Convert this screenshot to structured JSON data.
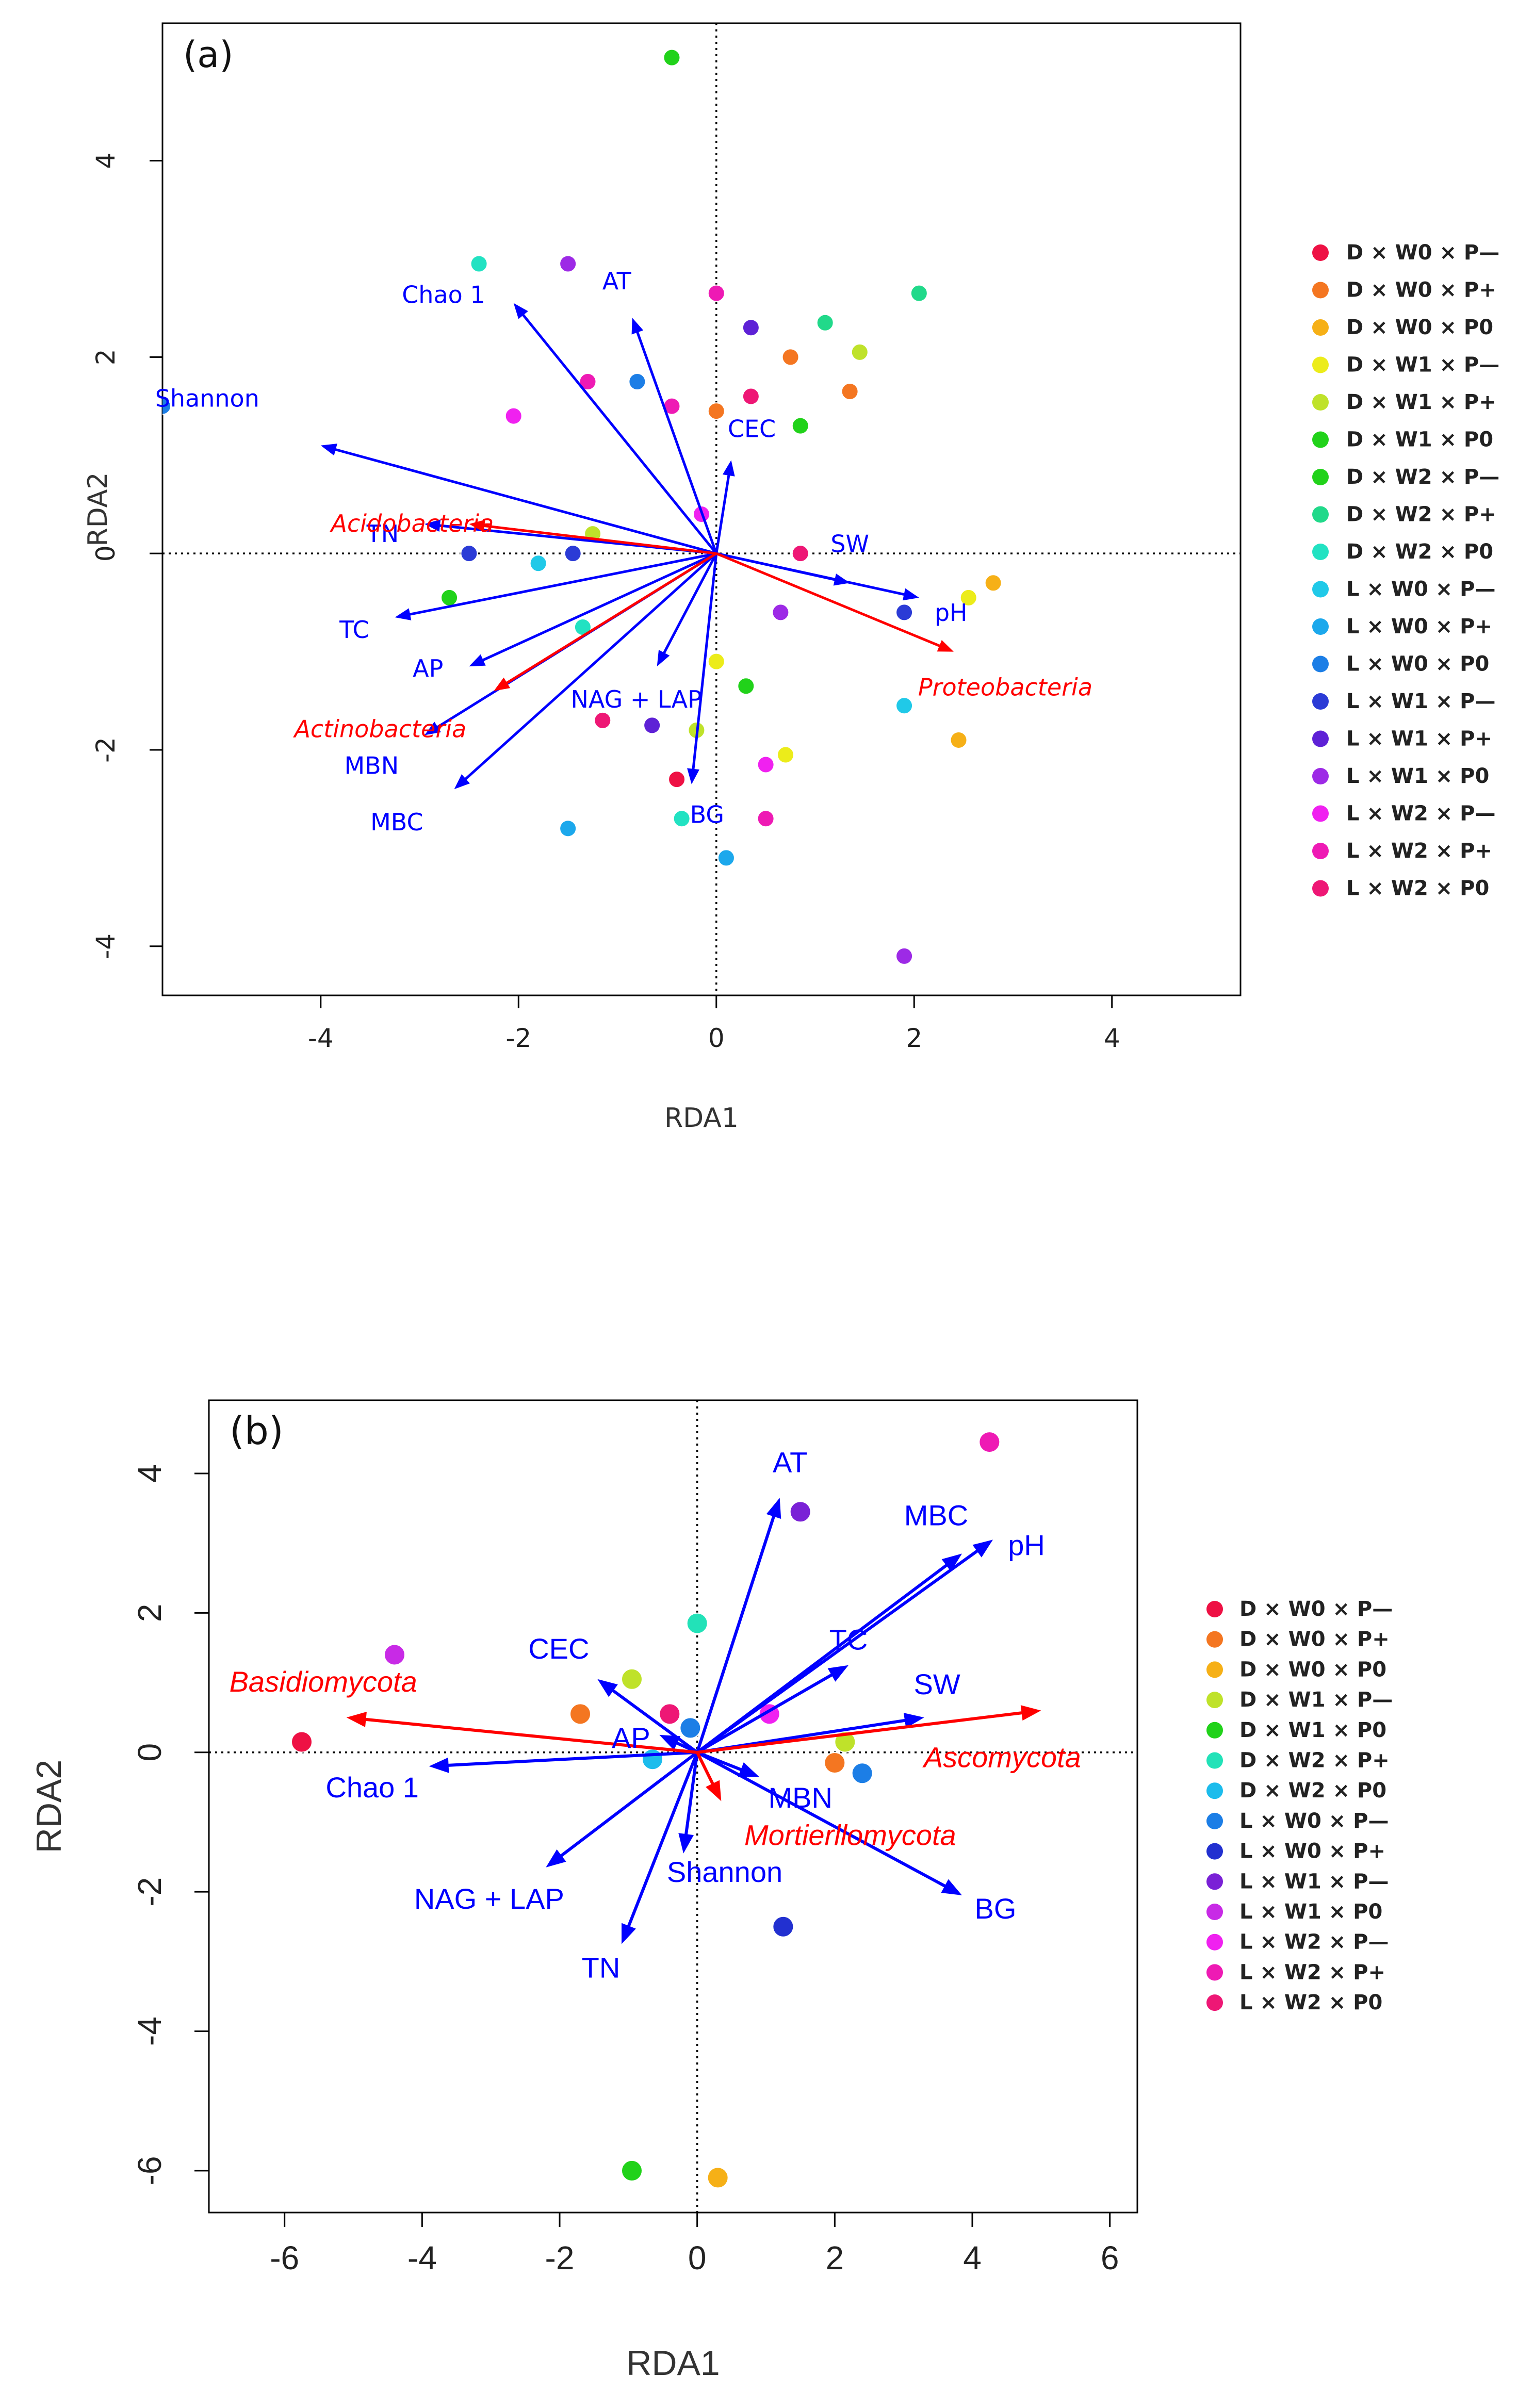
{
  "chart_data": [
    {
      "type": "scatter",
      "panel_label": "(a)",
      "title": "",
      "xlabel": "RDA1",
      "ylabel": "RDA2",
      "xlim": [
        -5.6,
        5.3
      ],
      "ylim": [
        -4.5,
        5.4
      ],
      "x_ticks": [
        -4,
        -2,
        0,
        2,
        4
      ],
      "y_ticks": [
        -4,
        -2,
        0,
        2,
        4
      ],
      "x_tick_labels": [
        "-4",
        "-2",
        "0",
        "2",
        "4"
      ],
      "y_tick_labels": [
        "-4",
        "-2",
        "0",
        "2",
        "4"
      ],
      "legend_position": "right",
      "groups": [
        {
          "name": "D × W0 × P—",
          "color": "#ee1144"
        },
        {
          "name": "D × W0 × P+",
          "color": "#f47621"
        },
        {
          "name": "D × W0 × P0",
          "color": "#f6b017"
        },
        {
          "name": "D × W1 × P—",
          "color": "#ecec1a"
        },
        {
          "name": "D × W1 × P+",
          "color": "#bfe22a"
        },
        {
          "name": "D × W1 × P0",
          "color": "#21d21a"
        },
        {
          "name": "D × W2 × P—",
          "color": "#21d21a"
        },
        {
          "name": "D × W2 × P+",
          "color": "#21d98a"
        },
        {
          "name": "D × W2 × P0",
          "color": "#22e2c2"
        },
        {
          "name": "L × W0 × P—",
          "color": "#20c9e8"
        },
        {
          "name": "L × W0 × P+",
          "color": "#1ca8ec"
        },
        {
          "name": "L × W0 × P0",
          "color": "#1c7ee6"
        },
        {
          "name": "L × W1 × P—",
          "color": "#2b3bd6"
        },
        {
          "name": "L × W1 × P+",
          "color": "#5e21d6"
        },
        {
          "name": "L × W1 × P0",
          "color": "#9d2ae6"
        },
        {
          "name": "L × W2 × P—",
          "color": "#f021f0"
        },
        {
          "name": "L × W2 × P+",
          "color": "#ee1ab4"
        },
        {
          "name": "L × W2 × P0",
          "color": "#ee1775"
        }
      ],
      "points": [
        {
          "x": -0.45,
          "y": 5.05,
          "group": 5
        },
        {
          "x": -2.4,
          "y": 2.95,
          "group": 8
        },
        {
          "x": -1.5,
          "y": 2.95,
          "group": 14
        },
        {
          "x": 0.0,
          "y": 2.65,
          "group": 16
        },
        {
          "x": 2.05,
          "y": 2.65,
          "group": 7
        },
        {
          "x": 1.1,
          "y": 2.35,
          "group": 7
        },
        {
          "x": 0.35,
          "y": 2.3,
          "group": 13
        },
        {
          "x": 1.45,
          "y": 2.05,
          "group": 4
        },
        {
          "x": 0.75,
          "y": 2.0,
          "group": 1
        },
        {
          "x": -0.8,
          "y": 1.75,
          "group": 11
        },
        {
          "x": -1.3,
          "y": 1.75,
          "group": 16
        },
        {
          "x": 1.35,
          "y": 1.65,
          "group": 1
        },
        {
          "x": 0.35,
          "y": 1.6,
          "group": 17
        },
        {
          "x": -0.45,
          "y": 1.5,
          "group": 16
        },
        {
          "x": 0.0,
          "y": 1.45,
          "group": 1
        },
        {
          "x": -2.05,
          "y": 1.4,
          "group": 15
        },
        {
          "x": 0.85,
          "y": 1.3,
          "group": 6
        },
        {
          "x": -0.15,
          "y": 0.4,
          "group": 15
        },
        {
          "x": -1.25,
          "y": 0.2,
          "group": 4
        },
        {
          "x": -2.5,
          "y": 0.0,
          "group": 12
        },
        {
          "x": -1.45,
          "y": 0.0,
          "group": 12
        },
        {
          "x": 0.85,
          "y": 0.0,
          "group": 17
        },
        {
          "x": -1.8,
          "y": -0.1,
          "group": 9
        },
        {
          "x": -2.7,
          "y": -0.45,
          "group": 5
        },
        {
          "x": 2.8,
          "y": -0.3,
          "group": 2
        },
        {
          "x": 2.55,
          "y": -0.45,
          "group": 3
        },
        {
          "x": 1.9,
          "y": -0.6,
          "group": 12
        },
        {
          "x": 0.65,
          "y": -0.6,
          "group": 14
        },
        {
          "x": -1.35,
          "y": -0.75,
          "group": 8
        },
        {
          "x": 0.0,
          "y": -1.1,
          "group": 3
        },
        {
          "x": 0.3,
          "y": -1.35,
          "group": 5
        },
        {
          "x": 1.9,
          "y": -1.55,
          "group": 9
        },
        {
          "x": -1.15,
          "y": -1.7,
          "group": 17
        },
        {
          "x": -0.65,
          "y": -1.75,
          "group": 13
        },
        {
          "x": -0.2,
          "y": -1.8,
          "group": 4
        },
        {
          "x": 2.45,
          "y": -1.9,
          "group": 2
        },
        {
          "x": 0.7,
          "y": -2.05,
          "group": 3
        },
        {
          "x": 0.5,
          "y": -2.15,
          "group": 15
        },
        {
          "x": -0.4,
          "y": -2.3,
          "group": 0
        },
        {
          "x": -0.35,
          "y": -2.7,
          "group": 8
        },
        {
          "x": 0.5,
          "y": -2.7,
          "group": 16
        },
        {
          "x": -1.5,
          "y": -2.8,
          "group": 10
        },
        {
          "x": 0.1,
          "y": -3.1,
          "group": 10
        },
        {
          "x": 1.9,
          "y": -4.1,
          "group": 14
        },
        {
          "x": -5.6,
          "y": 1.5,
          "group": 11
        }
      ],
      "arrows": [
        {
          "label": "Chao 1",
          "x": -2.05,
          "y": 2.55,
          "color": "#0000ff"
        },
        {
          "label": "AT",
          "x": -0.85,
          "y": 2.4,
          "color": "#0000ff"
        },
        {
          "label": "Shannon",
          "x": -4.0,
          "y": 1.1,
          "color": "#0000ff"
        },
        {
          "label": "CEC",
          "x": 0.15,
          "y": 0.95,
          "color": "#0000ff"
        },
        {
          "label": "TN",
          "x": -2.95,
          "y": 0.3,
          "color": "#0000ff"
        },
        {
          "label": "SW",
          "x": 1.35,
          "y": -0.3,
          "color": "#0000ff"
        },
        {
          "label": "pH",
          "x": 2.05,
          "y": -0.45,
          "color": "#0000ff"
        },
        {
          "label": "TC",
          "x": -3.25,
          "y": -0.65,
          "color": "#0000ff"
        },
        {
          "label": "AP",
          "x": -2.5,
          "y": -1.15,
          "color": "#0000ff"
        },
        {
          "label": "NAG + LAP",
          "x": -0.6,
          "y": -1.15,
          "color": "#0000ff"
        },
        {
          "label": "MBN",
          "x": -2.95,
          "y": -1.85,
          "color": "#0000ff"
        },
        {
          "label": "MBC",
          "x": -2.65,
          "y": -2.4,
          "color": "#0000ff"
        },
        {
          "label": "BG",
          "x": -0.25,
          "y": -2.35,
          "color": "#0000ff"
        },
        {
          "label": "Acidobacteria",
          "x": -2.5,
          "y": 0.3,
          "color": "#ff0000"
        },
        {
          "label": "Proteobacteria",
          "x": 2.4,
          "y": -1.0,
          "color": "#ff0000"
        },
        {
          "label": "Actinobacteria",
          "x": -2.25,
          "y": -1.4,
          "color": "#ff0000"
        }
      ]
    },
    {
      "type": "scatter",
      "panel_label": "(b)",
      "title": "",
      "xlabel": "RDA1",
      "ylabel": "RDA2",
      "xlim": [
        -7.1,
        6.4
      ],
      "ylim": [
        -6.6,
        5.05
      ],
      "x_ticks": [
        -6,
        -4,
        -2,
        0,
        2,
        4,
        6
      ],
      "y_ticks": [
        -6,
        -4,
        -2,
        0,
        2,
        4
      ],
      "x_tick_labels": [
        "-6",
        "-4",
        "-2",
        "0",
        "2",
        "4",
        "6"
      ],
      "y_tick_labels": [
        "-6",
        "-4",
        "-2",
        "0",
        "2",
        "4"
      ],
      "legend_position": "right",
      "groups": [
        {
          "name": "D × W0 × P—",
          "color": "#ee1144"
        },
        {
          "name": "D × W0 × P+",
          "color": "#f47621"
        },
        {
          "name": "D × W0 × P0",
          "color": "#f6b017"
        },
        {
          "name": "D × W1 × P—",
          "color": "#bfe22a"
        },
        {
          "name": "D × W1 × P0",
          "color": "#21d21a"
        },
        {
          "name": "D × W2 × P+",
          "color": "#22e2b8"
        },
        {
          "name": "D × W2 × P0",
          "color": "#1cbcec"
        },
        {
          "name": "L × W0 × P—",
          "color": "#1c7ee6"
        },
        {
          "name": "L × W0 × P+",
          "color": "#2230d0"
        },
        {
          "name": "L × W1 × P—",
          "color": "#7a21d6"
        },
        {
          "name": "L × W1 × P0",
          "color": "#c82ae6"
        },
        {
          "name": "L × W2 × P—",
          "color": "#f021f0"
        },
        {
          "name": "L × W2 × P+",
          "color": "#ee1ab4"
        },
        {
          "name": "L × W2 × P0",
          "color": "#ee1775"
        }
      ],
      "points": [
        {
          "x": 4.25,
          "y": 4.45,
          "group": 12
        },
        {
          "x": 1.5,
          "y": 3.45,
          "group": 9
        },
        {
          "x": 0.0,
          "y": 1.85,
          "group": 5
        },
        {
          "x": -4.4,
          "y": 1.4,
          "group": 10
        },
        {
          "x": -0.95,
          "y": 1.05,
          "group": 3
        },
        {
          "x": -1.7,
          "y": 0.55,
          "group": 1
        },
        {
          "x": -0.4,
          "y": 0.55,
          "group": 13
        },
        {
          "x": 1.05,
          "y": 0.55,
          "group": 11
        },
        {
          "x": -0.1,
          "y": 0.35,
          "group": 7
        },
        {
          "x": -5.75,
          "y": 0.15,
          "group": 0
        },
        {
          "x": 2.15,
          "y": 0.15,
          "group": 3
        },
        {
          "x": -0.65,
          "y": -0.1,
          "group": 6
        },
        {
          "x": 2.0,
          "y": -0.15,
          "group": 1
        },
        {
          "x": 2.4,
          "y": -0.3,
          "group": 7
        },
        {
          "x": 1.25,
          "y": -2.5,
          "group": 8
        },
        {
          "x": -0.95,
          "y": -6.0,
          "group": 4
        },
        {
          "x": 0.3,
          "y": -6.1,
          "group": 2
        }
      ],
      "arrows": [
        {
          "label": "AT",
          "x": 1.2,
          "y": 3.65,
          "color": "#0000ff"
        },
        {
          "label": "MBC",
          "x": 3.85,
          "y": 2.85,
          "color": "#0000ff"
        },
        {
          "label": "pH",
          "x": 4.3,
          "y": 3.05,
          "color": "#0000ff"
        },
        {
          "label": "TC",
          "x": 2.2,
          "y": 1.25,
          "color": "#0000ff"
        },
        {
          "label": "CEC",
          "x": -1.45,
          "y": 1.05,
          "color": "#0000ff"
        },
        {
          "label": "SW",
          "x": 3.3,
          "y": 0.5,
          "color": "#0000ff"
        },
        {
          "label": "AP",
          "x": -0.55,
          "y": 0.25,
          "color": "#0000ff"
        },
        {
          "label": "Chao 1",
          "x": -3.9,
          "y": -0.2,
          "color": "#0000ff"
        },
        {
          "label": "MBN",
          "x": 0.9,
          "y": -0.35,
          "color": "#0000ff"
        },
        {
          "label": "Shannon",
          "x": -0.2,
          "y": -1.45,
          "color": "#0000ff"
        },
        {
          "label": "NAG + LAP",
          "x": -2.2,
          "y": -1.65,
          "color": "#0000ff"
        },
        {
          "label": "BG",
          "x": 3.85,
          "y": -2.05,
          "color": "#0000ff"
        },
        {
          "label": "TN",
          "x": -1.1,
          "y": -2.75,
          "color": "#0000ff"
        },
        {
          "label": "Basidiomycota",
          "x": -5.1,
          "y": 0.5,
          "color": "#ff0000"
        },
        {
          "label": "Ascomycota",
          "x": 5.0,
          "y": 0.6,
          "color": "#ff0000"
        },
        {
          "label": "Mortierllomycota",
          "x": 0.35,
          "y": -0.7,
          "color": "#ff0000"
        }
      ]
    }
  ]
}
